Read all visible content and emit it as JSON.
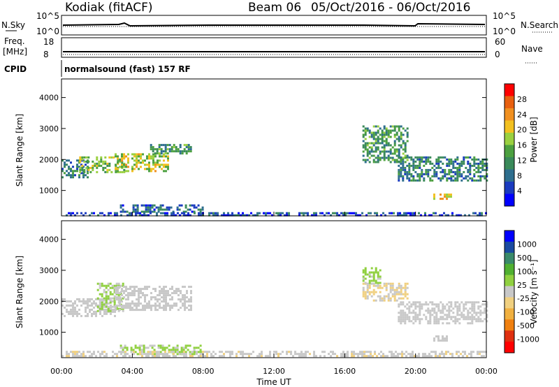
{
  "header": {
    "radar": "Kodiak (fitACF)",
    "beam": "Beam 06",
    "date_range": "05/Oct/2016 - 06/Oct/2016",
    "cpid_text": "normalsound (fast) 157 RF"
  },
  "status_panels": {
    "nsky_label": "N.Sky",
    "nsky_ticks": [
      "10^5",
      "10^0"
    ],
    "nsearch_label": "N.Search",
    "nsearch_ticks": [
      "10^5",
      "10^0"
    ],
    "freq_label": "Freq.",
    "freq_unit": "[MHz]",
    "freq_ticks": [
      "18",
      "8"
    ],
    "nave_label": "Nave",
    "nave_ticks": [
      "60",
      "0"
    ],
    "cpid_label": "CPID"
  },
  "colors": {
    "power_scale": [
      "#0000ff",
      "#1a3bbf",
      "#2e6e8e",
      "#3a8a5a",
      "#4ca040",
      "#9ad040",
      "#f2c020",
      "#f09020",
      "#e86010",
      "#ff0000"
    ],
    "velocity_scale": [
      "#ff0000",
      "#e03010",
      "#f08010",
      "#f0b040",
      "#f0d080",
      "#c8c8c8",
      "#90d040",
      "#50b030",
      "#3a8a6a",
      "#1a4aa0",
      "#0000ff"
    ]
  },
  "chart_data": [
    {
      "type": "heatmap",
      "name": "power",
      "ylabel": "Slant Range [km]",
      "yticks": [
        "4000",
        "3000",
        "2000",
        "1000"
      ],
      "ylim": [
        180,
        4600
      ],
      "colorbar_label": "Power [dB]",
      "colorbar_ticks": [
        "28",
        "24",
        "20",
        "16",
        "12",
        "8",
        "4"
      ],
      "colorbar_range": [
        0,
        32
      ],
      "regions": [
        {
          "x_hours": [
            0.0,
            1.5
          ],
          "range_km": [
            1400,
            2000
          ],
          "value": 10
        },
        {
          "x_hours": [
            1.0,
            3.5
          ],
          "range_km": [
            1600,
            2100
          ],
          "value": 16
        },
        {
          "x_hours": [
            3.0,
            6.0
          ],
          "range_km": [
            1600,
            2200
          ],
          "value": 18
        },
        {
          "x_hours": [
            5.0,
            7.3
          ],
          "range_km": [
            2200,
            2500
          ],
          "value": 12
        },
        {
          "x_hours": [
            3.3,
            8.0
          ],
          "range_km": [
            300,
            550
          ],
          "value": 8
        },
        {
          "x_hours": [
            0.0,
            24.0
          ],
          "range_km": [
            200,
            300
          ],
          "value": 6
        },
        {
          "x_hours": [
            17.0,
            19.5
          ],
          "range_km": [
            1900,
            3100
          ],
          "value": 12
        },
        {
          "x_hours": [
            19.0,
            24.0
          ],
          "range_km": [
            1300,
            2100
          ],
          "value": 10
        },
        {
          "x_hours": [
            21.0,
            22.0
          ],
          "range_km": [
            700,
            900
          ],
          "value": 20
        }
      ]
    },
    {
      "type": "heatmap",
      "name": "velocity",
      "ylabel": "Slant Range [km]",
      "yticks": [
        "4000",
        "3000",
        "2000",
        "1000"
      ],
      "ylim": [
        180,
        4600
      ],
      "colorbar_label": "Velocity [m s⁻¹]",
      "colorbar_ticks": [
        "1000",
        "500",
        "100",
        "25",
        "-25",
        "-100",
        "-500",
        "-1000"
      ],
      "regions": [
        {
          "x_hours": [
            0.0,
            3.0
          ],
          "range_km": [
            1500,
            2100
          ],
          "value": 0
        },
        {
          "x_hours": [
            2.0,
            3.5
          ],
          "range_km": [
            1700,
            2600
          ],
          "value": 120
        },
        {
          "x_hours": [
            3.0,
            7.3
          ],
          "range_km": [
            1700,
            2500
          ],
          "value": 0
        },
        {
          "x_hours": [
            3.3,
            8.0
          ],
          "range_km": [
            300,
            600
          ],
          "value": 150
        },
        {
          "x_hours": [
            0.0,
            24.0
          ],
          "range_km": [
            200,
            400
          ],
          "value": -60
        },
        {
          "x_hours": [
            17.0,
            19.5
          ],
          "range_km": [
            2000,
            2600
          ],
          "value": -120
        },
        {
          "x_hours": [
            17.0,
            18.0
          ],
          "range_km": [
            2600,
            3100
          ],
          "value": 150
        },
        {
          "x_hours": [
            19.0,
            24.0
          ],
          "range_km": [
            1300,
            2000
          ],
          "value": 0
        },
        {
          "x_hours": [
            21.0,
            22.0
          ],
          "range_km": [
            700,
            900
          ],
          "value": 0
        }
      ]
    }
  ],
  "time_axis": {
    "ticks": [
      "00:00",
      "04:00",
      "08:00",
      "12:00",
      "16:00",
      "20:00",
      "00:00"
    ],
    "label": "Time UT"
  }
}
